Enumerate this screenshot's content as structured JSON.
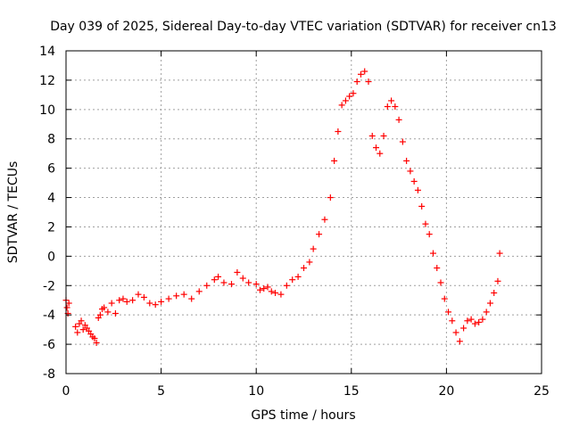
{
  "chart_data": {
    "type": "scatter",
    "title": "Day 039 of 2025, Sidereal Day-to-day VTEC variation (SDTVAR) for receiver cn13",
    "xlabel": "GPS time / hours",
    "ylabel": "SDTVAR / TECUs",
    "xlim": [
      0,
      25
    ],
    "ylim": [
      -8,
      14
    ],
    "xticks": [
      "0",
      "5",
      "10",
      "15",
      "20",
      "25"
    ],
    "yticks": [
      "-8",
      "-6",
      "-4",
      "-2",
      "0",
      "2",
      "4",
      "6",
      "8",
      "10",
      "12",
      "14"
    ],
    "marker": "+",
    "color": "#ff0000",
    "grid": true,
    "series": [
      {
        "name": "SDTVAR",
        "x": [
          0.0,
          0.05,
          0.1,
          0.15,
          0.5,
          0.6,
          0.7,
          0.8,
          0.9,
          1.0,
          1.1,
          1.2,
          1.3,
          1.4,
          1.5,
          1.6,
          1.7,
          1.8,
          1.9,
          2.0,
          2.2,
          2.4,
          2.6,
          2.8,
          3.0,
          3.2,
          3.5,
          3.8,
          4.1,
          4.4,
          4.7,
          5.0,
          5.4,
          5.8,
          6.2,
          6.6,
          7.0,
          7.4,
          7.8,
          8.0,
          8.3,
          8.7,
          9.0,
          9.3,
          9.6,
          10.0,
          10.2,
          10.4,
          10.6,
          10.8,
          11.0,
          11.3,
          11.6,
          11.9,
          12.2,
          12.5,
          12.8,
          13.0,
          13.3,
          13.6,
          13.9,
          14.1,
          14.3,
          14.5,
          14.7,
          14.9,
          15.1,
          15.3,
          15.5,
          15.7,
          15.9,
          16.1,
          16.3,
          16.5,
          16.7,
          16.9,
          17.1,
          17.3,
          17.5,
          17.7,
          17.9,
          18.1,
          18.3,
          18.5,
          18.7,
          18.9,
          19.1,
          19.3,
          19.5,
          19.7,
          19.9,
          20.1,
          20.3,
          20.5,
          20.7,
          20.9,
          21.1,
          21.3,
          21.5,
          21.7,
          21.9,
          22.1,
          22.3,
          22.5,
          22.7,
          22.8
        ],
        "y": [
          -3.0,
          -3.5,
          -3.9,
          -3.2,
          -4.8,
          -5.2,
          -4.6,
          -4.4,
          -5.0,
          -4.7,
          -4.9,
          -5.1,
          -5.3,
          -5.5,
          -5.6,
          -5.9,
          -4.2,
          -4.0,
          -3.6,
          -3.5,
          -3.8,
          -3.2,
          -3.9,
          -3.0,
          -2.9,
          -3.1,
          -3.0,
          -2.6,
          -2.8,
          -3.2,
          -3.3,
          -3.1,
          -2.9,
          -2.7,
          -2.6,
          -2.9,
          -2.4,
          -2.0,
          -1.6,
          -1.4,
          -1.8,
          -1.9,
          -1.1,
          -1.5,
          -1.8,
          -1.9,
          -2.3,
          -2.2,
          -2.1,
          -2.4,
          -2.5,
          -2.6,
          -2.0,
          -1.6,
          -1.4,
          -0.8,
          -0.4,
          0.5,
          1.5,
          2.5,
          4.0,
          6.5,
          8.5,
          10.3,
          10.6,
          10.9,
          11.1,
          11.9,
          12.4,
          12.6,
          11.9,
          8.2,
          7.4,
          7.0,
          8.2,
          10.2,
          10.6,
          10.2,
          9.3,
          7.8,
          6.5,
          5.8,
          5.1,
          4.5,
          3.4,
          2.2,
          1.5,
          0.2,
          -0.8,
          -1.8,
          -2.9,
          -3.8,
          -4.4,
          -5.2,
          -5.8,
          -4.9,
          -4.4,
          -4.3,
          -4.6,
          -4.5,
          -4.3,
          -3.8,
          -3.2,
          -2.5,
          -1.7,
          0.2
        ]
      }
    ]
  }
}
